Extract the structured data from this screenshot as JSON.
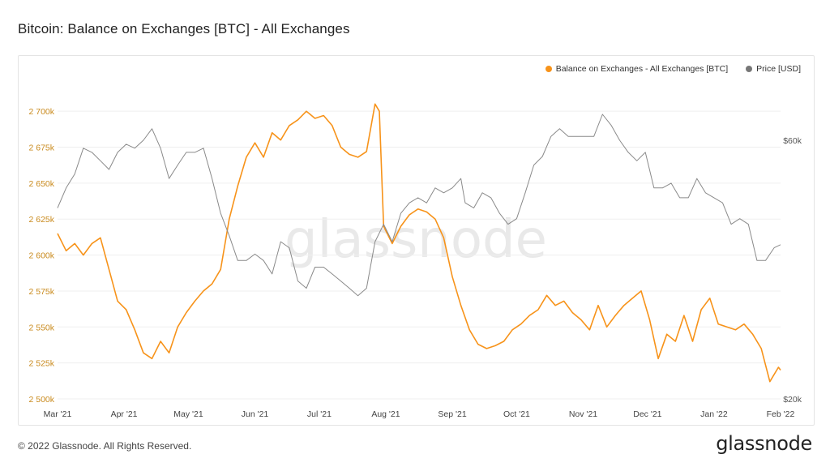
{
  "title": "Bitcoin: Balance on Exchanges [BTC] - All Exchanges",
  "footer": "© 2022 Glassnode. All Rights Reserved.",
  "brand": "glassnode",
  "watermark": "glassnode",
  "legend": [
    {
      "label": "Balance on Exchanges - All Exchanges [BTC]",
      "color": "#f7931a"
    },
    {
      "label": "Price [USD]",
      "color": "#777777"
    }
  ],
  "chart_data": {
    "type": "line",
    "title": "Bitcoin: Balance on Exchanges [BTC] - All Exchanges",
    "x_tick_labels": [
      "Mar '21",
      "Apr '21",
      "May '21",
      "Jun '21",
      "Jul '21",
      "Aug '21",
      "Sep '21",
      "Oct '21",
      "Nov '21",
      "Dec '21",
      "Jan '22",
      "Feb '22"
    ],
    "x_range": [
      "2021-03-01",
      "2022-02-01"
    ],
    "y_left": {
      "range": [
        2500000,
        2712500
      ],
      "ticks": [
        2500000,
        2525000,
        2550000,
        2575000,
        2600000,
        2625000,
        2650000,
        2675000,
        2700000
      ],
      "tick_labels": [
        "2 500k",
        "2 525k",
        "2 550k",
        "2 575k",
        "2 600k",
        "2 625k",
        "2 650k",
        "2 675k",
        "2 700k"
      ]
    },
    "y_right": {
      "scale": "log",
      "ticks": [
        20000,
        60000
      ],
      "tick_labels": [
        "$20k",
        "$60k"
      ]
    },
    "grid": true,
    "legend_position": "top-right",
    "series": [
      {
        "name": "Balance on Exchanges - All Exchanges [BTC]",
        "axis": "left",
        "color": "#f7931a",
        "x": [
          "2021-03-01",
          "2021-03-05",
          "2021-03-09",
          "2021-03-13",
          "2021-03-17",
          "2021-03-21",
          "2021-03-25",
          "2021-03-29",
          "2021-04-02",
          "2021-04-06",
          "2021-04-10",
          "2021-04-14",
          "2021-04-18",
          "2021-04-22",
          "2021-04-26",
          "2021-04-30",
          "2021-05-04",
          "2021-05-08",
          "2021-05-12",
          "2021-05-16",
          "2021-05-20",
          "2021-05-24",
          "2021-05-28",
          "2021-06-01",
          "2021-06-05",
          "2021-06-09",
          "2021-06-13",
          "2021-06-17",
          "2021-06-21",
          "2021-06-25",
          "2021-06-29",
          "2021-07-03",
          "2021-07-07",
          "2021-07-11",
          "2021-07-15",
          "2021-07-19",
          "2021-07-23",
          "2021-07-27",
          "2021-07-29",
          "2021-07-31",
          "2021-08-04",
          "2021-08-08",
          "2021-08-12",
          "2021-08-16",
          "2021-08-20",
          "2021-08-24",
          "2021-08-28",
          "2021-09-01",
          "2021-09-05",
          "2021-09-09",
          "2021-09-13",
          "2021-09-17",
          "2021-09-21",
          "2021-09-25",
          "2021-09-29",
          "2021-10-03",
          "2021-10-07",
          "2021-10-11",
          "2021-10-15",
          "2021-10-19",
          "2021-10-23",
          "2021-10-27",
          "2021-10-31",
          "2021-11-04",
          "2021-11-08",
          "2021-11-12",
          "2021-11-16",
          "2021-11-20",
          "2021-11-24",
          "2021-11-28",
          "2021-12-02",
          "2021-12-06",
          "2021-12-10",
          "2021-12-14",
          "2021-12-18",
          "2021-12-22",
          "2021-12-26",
          "2021-12-30",
          "2022-01-03",
          "2022-01-07",
          "2022-01-11",
          "2022-01-15",
          "2022-01-19",
          "2022-01-23",
          "2022-01-27",
          "2022-01-31",
          "2022-02-01"
        ],
        "values": [
          2615000,
          2603000,
          2608000,
          2600000,
          2608000,
          2612000,
          2590000,
          2568000,
          2562000,
          2548000,
          2532000,
          2528000,
          2540000,
          2532000,
          2550000,
          2560000,
          2568000,
          2575000,
          2580000,
          2590000,
          2625000,
          2648000,
          2668000,
          2678000,
          2668000,
          2685000,
          2680000,
          2690000,
          2694000,
          2700000,
          2695000,
          2697000,
          2690000,
          2675000,
          2670000,
          2668000,
          2672000,
          2705000,
          2700000,
          2620000,
          2608000,
          2620000,
          2628000,
          2632000,
          2630000,
          2625000,
          2612000,
          2585000,
          2565000,
          2548000,
          2538000,
          2535000,
          2537000,
          2540000,
          2548000,
          2552000,
          2558000,
          2562000,
          2572000,
          2565000,
          2568000,
          2560000,
          2555000,
          2548000,
          2565000,
          2550000,
          2558000,
          2565000,
          2570000,
          2575000,
          2555000,
          2528000,
          2545000,
          2540000,
          2558000,
          2540000,
          2562000,
          2570000,
          2552000,
          2550000,
          2548000,
          2552000,
          2545000,
          2535000,
          2512000,
          2522000,
          2520000
        ]
      },
      {
        "name": "Price [USD]",
        "axis": "right",
        "color": "#8a8a8a",
        "x": [
          "2021-03-01",
          "2021-03-05",
          "2021-03-09",
          "2021-03-13",
          "2021-03-17",
          "2021-03-21",
          "2021-03-25",
          "2021-03-29",
          "2021-04-02",
          "2021-04-06",
          "2021-04-10",
          "2021-04-14",
          "2021-04-18",
          "2021-04-22",
          "2021-04-26",
          "2021-04-30",
          "2021-05-04",
          "2021-05-08",
          "2021-05-12",
          "2021-05-16",
          "2021-05-20",
          "2021-05-24",
          "2021-05-28",
          "2021-06-01",
          "2021-06-05",
          "2021-06-09",
          "2021-06-13",
          "2021-06-17",
          "2021-06-21",
          "2021-06-25",
          "2021-06-29",
          "2021-07-03",
          "2021-07-07",
          "2021-07-11",
          "2021-07-15",
          "2021-07-19",
          "2021-07-23",
          "2021-07-27",
          "2021-07-31",
          "2021-08-04",
          "2021-08-08",
          "2021-08-12",
          "2021-08-16",
          "2021-08-20",
          "2021-08-24",
          "2021-08-28",
          "2021-09-01",
          "2021-09-05",
          "2021-09-07",
          "2021-09-11",
          "2021-09-15",
          "2021-09-19",
          "2021-09-23",
          "2021-09-27",
          "2021-10-01",
          "2021-10-05",
          "2021-10-09",
          "2021-10-13",
          "2021-10-17",
          "2021-10-21",
          "2021-10-25",
          "2021-10-29",
          "2021-11-02",
          "2021-11-06",
          "2021-11-10",
          "2021-11-14",
          "2021-11-18",
          "2021-11-22",
          "2021-11-26",
          "2021-11-30",
          "2021-12-04",
          "2021-12-08",
          "2021-12-12",
          "2021-12-16",
          "2021-12-20",
          "2021-12-24",
          "2021-12-28",
          "2022-01-01",
          "2022-01-05",
          "2022-01-09",
          "2022-01-13",
          "2022-01-17",
          "2022-01-21",
          "2022-01-25",
          "2022-01-29",
          "2022-02-01"
        ],
        "values": [
          45000,
          49000,
          52000,
          58000,
          57000,
          55000,
          53000,
          57000,
          59000,
          58000,
          60000,
          63000,
          58000,
          51000,
          54000,
          57000,
          57000,
          58000,
          51000,
          44000,
          40000,
          36000,
          36000,
          37000,
          36000,
          34000,
          39000,
          38000,
          33000,
          32000,
          35000,
          35000,
          34000,
          33000,
          32000,
          31000,
          32000,
          39000,
          42000,
          39000,
          44000,
          46000,
          47000,
          46000,
          49000,
          48000,
          49000,
          51000,
          46000,
          45000,
          48000,
          47000,
          44000,
          42000,
          43000,
          48000,
          54000,
          56000,
          61000,
          63000,
          61000,
          61000,
          61000,
          61000,
          67000,
          64000,
          60000,
          57000,
          55000,
          57000,
          49000,
          49000,
          50000,
          47000,
          47000,
          51000,
          48000,
          47000,
          46000,
          42000,
          43000,
          42000,
          36000,
          36000,
          38000,
          38500
        ]
      }
    ]
  }
}
